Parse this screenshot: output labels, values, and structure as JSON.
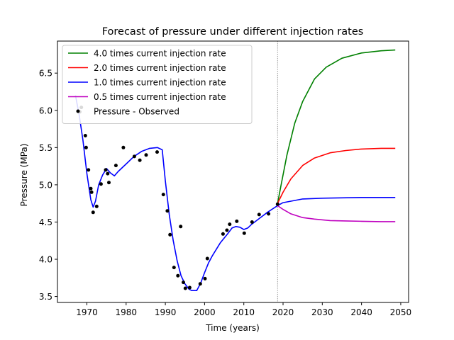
{
  "chart_data": {
    "type": "line",
    "title": "Forecast of pressure under different injection rates",
    "xlabel": "Time (years)",
    "ylabel": "Pressure (MPa)",
    "xlim": [
      1962.5,
      2052
    ],
    "ylim": [
      3.42,
      6.93
    ],
    "xticks": [
      1970,
      1980,
      1990,
      2000,
      2010,
      2020,
      2030,
      2040,
      2050
    ],
    "yticks": [
      3.5,
      4.0,
      4.5,
      5.0,
      5.5,
      6.0,
      6.5
    ],
    "grid": false,
    "legend_position": "top-left",
    "vline_x": 2018.6,
    "series": [
      {
        "name": "4.0 times current injection rate",
        "color": "#008000",
        "x": [
          2018.6,
          2019.5,
          2021,
          2023,
          2025,
          2028,
          2031,
          2035,
          2040,
          2045,
          2048.6
        ],
        "y": [
          4.75,
          5.0,
          5.4,
          5.83,
          6.12,
          6.42,
          6.58,
          6.7,
          6.77,
          6.8,
          6.81
        ]
      },
      {
        "name": "2.0 times current injection rate",
        "color": "#ff0000",
        "x": [
          2018.6,
          2020,
          2022,
          2025,
          2028,
          2032,
          2036,
          2040,
          2045,
          2048.6
        ],
        "y": [
          4.75,
          4.9,
          5.08,
          5.26,
          5.36,
          5.43,
          5.46,
          5.48,
          5.49,
          5.49
        ]
      },
      {
        "name": "1.0 times current injection rate",
        "color": "#0000ff",
        "x": [
          1967.1,
          1968,
          1969,
          1970,
          1971,
          1971.6,
          1972.2,
          1973,
          1974,
          1975,
          1976,
          1977,
          1978,
          1980,
          1982,
          1984,
          1986,
          1988,
          1989.2,
          1990,
          1991,
          1992,
          1993,
          1994,
          1995,
          1996,
          1996.7,
          1998,
          1999,
          2000,
          2001,
          2002,
          2004,
          2006,
          2007,
          2008,
          2009,
          2010,
          2011,
          2012,
          2014,
          2016,
          2018.6,
          2020,
          2025,
          2030,
          2040,
          2048.6
        ],
        "y": [
          6.2,
          5.95,
          5.6,
          5.15,
          4.8,
          4.7,
          4.78,
          5.0,
          5.13,
          5.22,
          5.16,
          5.12,
          5.18,
          5.28,
          5.38,
          5.45,
          5.49,
          5.5,
          5.47,
          5.05,
          4.6,
          4.25,
          3.98,
          3.78,
          3.67,
          3.6,
          3.58,
          3.58,
          3.68,
          3.82,
          3.95,
          4.05,
          4.22,
          4.35,
          4.42,
          4.44,
          4.43,
          4.4,
          4.42,
          4.47,
          4.55,
          4.63,
          4.72,
          4.76,
          4.81,
          4.82,
          4.83,
          4.83
        ]
      },
      {
        "name": "0.5 times current injection rate",
        "color": "#bf00bf",
        "x": [
          2018.6,
          2020,
          2022,
          2025,
          2028,
          2032,
          2036,
          2040,
          2045,
          2048.6
        ],
        "y": [
          4.72,
          4.67,
          4.61,
          4.56,
          4.54,
          4.52,
          4.515,
          4.51,
          4.505,
          4.505
        ]
      }
    ],
    "observed": {
      "name": "Pressure - Observed",
      "color": "#000000",
      "points": [
        [
          1968.2,
          5.98
        ],
        [
          1968.6,
          6.04
        ],
        [
          1969.6,
          5.66
        ],
        [
          1969.8,
          5.5
        ],
        [
          1970.4,
          5.2
        ],
        [
          1971.0,
          4.95
        ],
        [
          1971.2,
          4.9
        ],
        [
          1971.6,
          4.63
        ],
        [
          1972.5,
          4.71
        ],
        [
          1973.6,
          5.01
        ],
        [
          1974.8,
          5.2
        ],
        [
          1975.3,
          5.15
        ],
        [
          1975.6,
          5.03
        ],
        [
          1977.4,
          5.26
        ],
        [
          1979.3,
          5.5
        ],
        [
          1982.1,
          5.38
        ],
        [
          1983.5,
          5.33
        ],
        [
          1985.1,
          5.4
        ],
        [
          1987.9,
          5.44
        ],
        [
          1989.5,
          4.87
        ],
        [
          1990.5,
          4.65
        ],
        [
          1991.2,
          4.33
        ],
        [
          1992.2,
          3.89
        ],
        [
          1993.2,
          3.78
        ],
        [
          1993.9,
          4.44
        ],
        [
          1994.6,
          3.69
        ],
        [
          1995.1,
          3.61
        ],
        [
          1996.2,
          3.62
        ],
        [
          1998.9,
          3.67
        ],
        [
          2000.1,
          3.74
        ],
        [
          2000.7,
          4.01
        ],
        [
          2004.7,
          4.34
        ],
        [
          2005.7,
          4.39
        ],
        [
          2006.4,
          4.47
        ],
        [
          2008.2,
          4.51
        ],
        [
          2010.1,
          4.35
        ],
        [
          2012.1,
          4.5
        ],
        [
          2013.9,
          4.6
        ],
        [
          2016.3,
          4.61
        ],
        [
          2018.6,
          4.74
        ]
      ]
    }
  }
}
